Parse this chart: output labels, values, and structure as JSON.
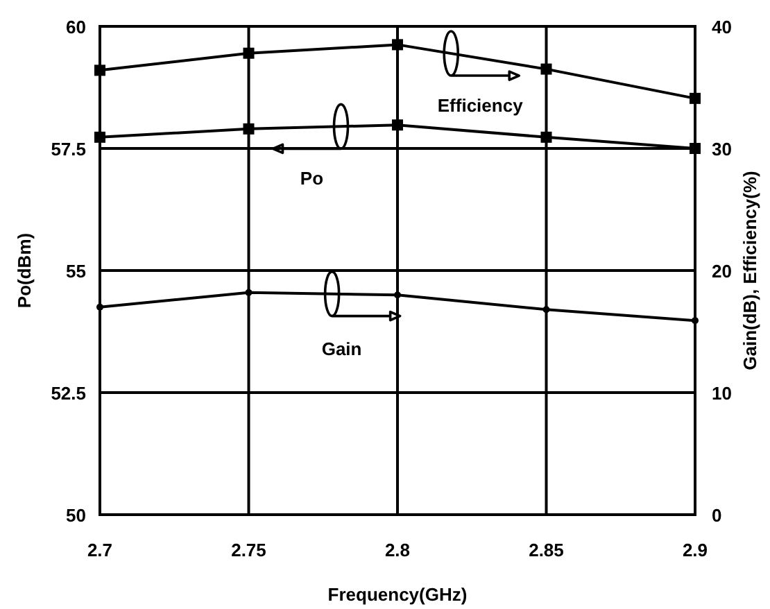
{
  "chart_data": {
    "type": "line",
    "xlabel": "Frequency(GHz)",
    "ylabel": "Po(dBm)",
    "y2label": "Gain(dB), Efficiency(%)",
    "x": [
      2.7,
      2.75,
      2.8,
      2.85,
      2.9
    ],
    "xlim": [
      2.7,
      2.9
    ],
    "xticks": [
      2.7,
      2.75,
      2.8,
      2.85,
      2.9
    ],
    "ylim": [
      50,
      60
    ],
    "yticks": [
      50,
      52.5,
      55,
      57.5,
      60
    ],
    "y2lim": [
      0,
      40
    ],
    "y2ticks": [
      0,
      10,
      20,
      30,
      40
    ],
    "grid": true,
    "legend": "top",
    "line_style": "solid",
    "series": [
      {
        "name": "Efficiency",
        "color": "#000000",
        "axis": "y2",
        "marker": "square",
        "values": [
          36.4,
          37.8,
          38.5,
          36.5,
          34.1
        ]
      },
      {
        "name": "Po",
        "color": "#000000",
        "marker": "square",
        "values": [
          57.73,
          57.9,
          57.98,
          57.73,
          57.5
        ]
      },
      {
        "name": "Gain",
        "color": "#000000",
        "axis": "y2",
        "marker": "circle",
        "values": [
          17.0,
          18.2,
          18.0,
          16.8,
          15.9
        ]
      }
    ]
  }
}
